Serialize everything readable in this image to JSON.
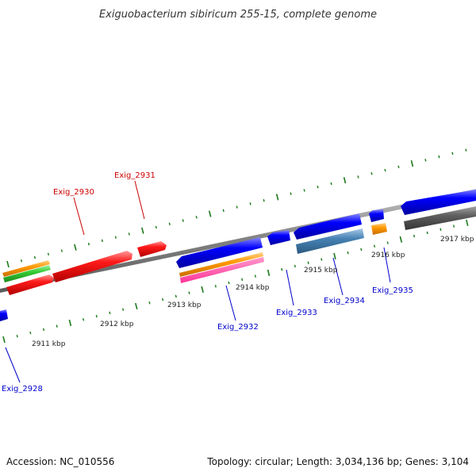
{
  "title": "Exiguobacterium sibiricum 255-15, complete genome",
  "footer": {
    "accession": "Accession: NC_010556",
    "summary": "Topology: circular; Length: 3,034,136 bp; Genes: 3,104"
  },
  "colors": {
    "backbone": "#808080",
    "ticks": "#1a7a1a",
    "label_forward_strand": "#cc0000",
    "label_reverse_strand": "#0000cc",
    "red_gene": "#ff1a1a",
    "blue_gene": "#0000ff",
    "orange_feature": "#ff9900",
    "green_feature": "#33cc33",
    "steelblue_feature": "#4682b4",
    "pink_feature": "#ff3399",
    "grey_feature": "#555555"
  },
  "ruler": {
    "labels": [
      {
        "text": "2911 kbp"
      },
      {
        "text": "2912 kbp"
      },
      {
        "text": "2913 kbp"
      },
      {
        "text": "2914 kbp"
      },
      {
        "text": "2915 kbp"
      },
      {
        "text": "2916 kbp"
      },
      {
        "text": "2917 kbp"
      }
    ]
  },
  "gene_labels": [
    {
      "text": "Exig_2931",
      "strand": "forward"
    },
    {
      "text": "Exig_2930",
      "strand": "forward"
    },
    {
      "text": "Exig_2928",
      "strand": "reverse"
    },
    {
      "text": "Exig_2932",
      "strand": "reverse"
    },
    {
      "text": "Exig_2933",
      "strand": "reverse"
    },
    {
      "text": "Exig_2934",
      "strand": "reverse"
    },
    {
      "text": "Exig_2935",
      "strand": "reverse"
    }
  ]
}
